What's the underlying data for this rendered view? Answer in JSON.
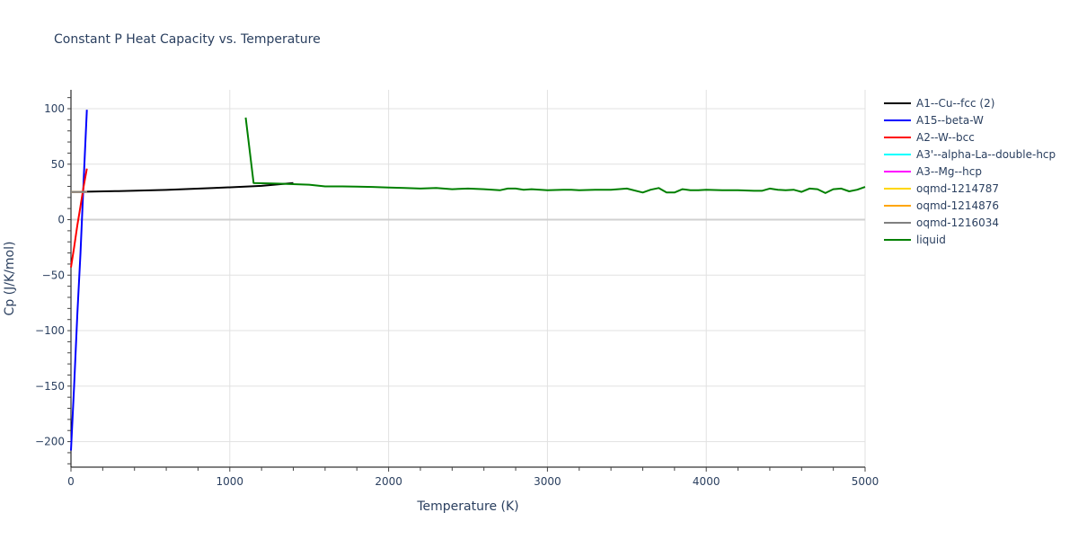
{
  "chart_data": {
    "type": "line",
    "title": "Constant P Heat Capacity vs. Temperature",
    "xlabel": "Temperature (K)",
    "ylabel": "Cp (J/K/mol)",
    "xlim": [
      0,
      5000
    ],
    "ylim": [
      -223,
      117
    ],
    "xticks": [
      0,
      1000,
      2000,
      3000,
      4000,
      5000
    ],
    "yticks": [
      100,
      50,
      0,
      -50,
      -100,
      -150,
      -200
    ],
    "grid": true,
    "legend_position": "right",
    "series": [
      {
        "name": "A1--Cu--fcc (2)",
        "color": "#000000",
        "x": [
          0,
          100,
          300,
          600,
          900,
          1200,
          1400
        ],
        "y": [
          25.0,
          25.2,
          25.8,
          26.8,
          28.5,
          30.5,
          33.0
        ]
      },
      {
        "name": "A15--beta-W",
        "color": "#0000ff",
        "x": [
          0,
          20,
          40,
          60,
          80,
          100
        ],
        "y": [
          -208,
          -150,
          -85,
          -30,
          35,
          99
        ]
      },
      {
        "name": "A2--W--bcc",
        "color": "#ff0000",
        "x": [
          0,
          20,
          40,
          60,
          80,
          100
        ],
        "y": [
          -43,
          -25,
          -5,
          12,
          30,
          46
        ]
      },
      {
        "name": "A3'--alpha-La--double-hcp",
        "color": "#00ffff",
        "x": [
          0,
          100
        ],
        "y": [
          25,
          25
        ]
      },
      {
        "name": "A3--Mg--hcp",
        "color": "#ff00ff",
        "x": [
          0,
          100
        ],
        "y": [
          25,
          25
        ]
      },
      {
        "name": "oqmd-1214787",
        "color": "#ffd700",
        "x": [
          0,
          100
        ],
        "y": [
          25,
          25
        ]
      },
      {
        "name": "oqmd-1214876",
        "color": "#ffa500",
        "x": [
          0,
          100
        ],
        "y": [
          25,
          25
        ]
      },
      {
        "name": "oqmd-1216034",
        "color": "#808080",
        "x": [
          0,
          100
        ],
        "y": [
          25,
          25
        ]
      },
      {
        "name": "liquid",
        "color": "#008000",
        "x": [
          1100,
          1150,
          1300,
          1400,
          1500,
          1600,
          1700,
          1800,
          1900,
          2000,
          2100,
          2200,
          2300,
          2400,
          2500,
          2600,
          2700,
          2750,
          2800,
          2850,
          2900,
          3000,
          3100,
          3150,
          3200,
          3300,
          3400,
          3500,
          3600,
          3650,
          3700,
          3750,
          3800,
          3850,
          3900,
          3950,
          4000,
          4100,
          4200,
          4300,
          4350,
          4400,
          4450,
          4500,
          4550,
          4600,
          4650,
          4700,
          4750,
          4800,
          4850,
          4900,
          4950,
          5000
        ],
        "y": [
          92,
          33,
          32.5,
          32,
          31.5,
          30,
          30,
          29.8,
          29.5,
          29,
          28.5,
          28,
          28.5,
          27.5,
          28,
          27.5,
          26.5,
          28,
          28,
          27,
          27.5,
          26.5,
          27,
          27,
          26.5,
          27,
          27,
          28,
          24.5,
          27,
          28.5,
          24.5,
          24.5,
          27.5,
          26.5,
          26.5,
          27,
          26.5,
          26.5,
          26,
          26,
          28,
          27,
          26.5,
          27,
          25,
          28,
          27.5,
          24,
          27.5,
          28,
          25.5,
          27,
          29.5
        ]
      }
    ]
  },
  "legend": {
    "items": [
      {
        "label": "A1--Cu--fcc (2)",
        "color": "#000000"
      },
      {
        "label": "A15--beta-W",
        "color": "#0000ff"
      },
      {
        "label": "A2--W--bcc",
        "color": "#ff0000"
      },
      {
        "label": "A3'--alpha-La--double-hcp",
        "color": "#00ffff"
      },
      {
        "label": "A3--Mg--hcp",
        "color": "#ff00ff"
      },
      {
        "label": "oqmd-1214787",
        "color": "#ffd700"
      },
      {
        "label": "oqmd-1214876",
        "color": "#ffa500"
      },
      {
        "label": "oqmd-1216034",
        "color": "#808080"
      },
      {
        "label": "liquid",
        "color": "#008000"
      }
    ]
  }
}
